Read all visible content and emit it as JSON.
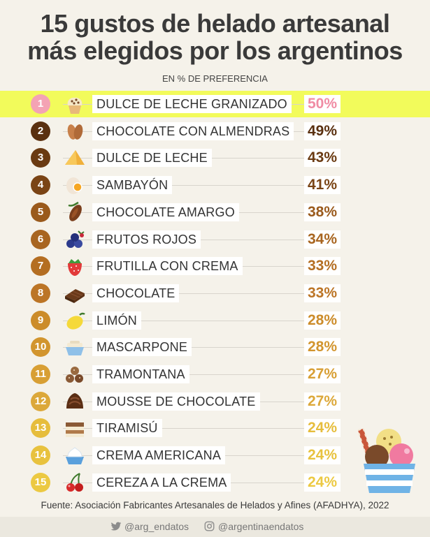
{
  "header": {
    "title_line1": "15 gustos de helado artesanal",
    "title_line2": "más elegidos por los argentinos",
    "subtitle": "EN % DE PREFERENCIA"
  },
  "chart_data": {
    "type": "bar",
    "title": "15 gustos de helado artesanal más elegidos por los argentinos",
    "subtitle": "EN % DE PREFERENCIA",
    "unit": "%",
    "highlighted_rank": 1,
    "categories": [
      "DULCE DE LECHE GRANIZADO",
      "CHOCOLATE CON ALMENDRAS",
      "DULCE DE LECHE",
      "SAMBAYÓN",
      "CHOCOLATE AMARGO",
      "FRUTOS ROJOS",
      "FRUTILLA CON CREMA",
      "CHOCOLATE",
      "LIMÓN",
      "MASCARPONE",
      "TRAMONTANA",
      "MOUSSE DE CHOCOLATE",
      "TIRAMISÚ",
      "CREMA AMERICANA",
      "CEREZA A LA CREMA"
    ],
    "values": [
      50,
      49,
      43,
      41,
      38,
      34,
      33,
      33,
      28,
      28,
      27,
      27,
      24,
      24,
      24
    ],
    "items": [
      {
        "rank": "1",
        "name": "DULCE DE LECHE GRANIZADO",
        "pct": "50%",
        "icon": "cupcake-icon",
        "badge_color": "#f4a3b4",
        "pct_color": "#f08ca4"
      },
      {
        "rank": "2",
        "name": "CHOCOLATE CON ALMENDRAS",
        "pct": "49%",
        "icon": "almond-icon",
        "badge_color": "#5a3010",
        "pct_color": "#5a3010"
      },
      {
        "rank": "3",
        "name": "DULCE DE LECHE",
        "pct": "43%",
        "icon": "caramel-icon",
        "badge_color": "#6a3a12",
        "pct_color": "#6a3a12"
      },
      {
        "rank": "4",
        "name": "SAMBAYÓN",
        "pct": "41%",
        "icon": "egg-icon",
        "badge_color": "#7a4415",
        "pct_color": "#7a4415"
      },
      {
        "rank": "5",
        "name": "CHOCOLATE AMARGO",
        "pct": "38%",
        "icon": "cacao-pod-icon",
        "badge_color": "#9a5a1c",
        "pct_color": "#9a5a1c"
      },
      {
        "rank": "6",
        "name": "FRUTOS ROJOS",
        "pct": "34%",
        "icon": "berries-icon",
        "badge_color": "#a86520",
        "pct_color": "#a86520"
      },
      {
        "rank": "7",
        "name": "FRUTILLA CON CREMA",
        "pct": "33%",
        "icon": "strawberry-icon",
        "badge_color": "#b46e22",
        "pct_color": "#b46e22"
      },
      {
        "rank": "8",
        "name": "CHOCOLATE",
        "pct": "33%",
        "icon": "chocolate-bar-icon",
        "badge_color": "#bc7526",
        "pct_color": "#bc7526"
      },
      {
        "rank": "9",
        "name": "LIMÓN",
        "pct": "28%",
        "icon": "lemon-icon",
        "badge_color": "#cc8c2a",
        "pct_color": "#cc8c2a"
      },
      {
        "rank": "10",
        "name": "MASCARPONE",
        "pct": "28%",
        "icon": "cheese-bowl-icon",
        "badge_color": "#d2952e",
        "pct_color": "#d2952e"
      },
      {
        "rank": "11",
        "name": "TRAMONTANA",
        "pct": "27%",
        "icon": "cookie-balls-icon",
        "badge_color": "#d89f34",
        "pct_color": "#d89f34"
      },
      {
        "rank": "12",
        "name": "MOUSSE DE CHOCOLATE",
        "pct": "27%",
        "icon": "chocolate-truffle-icon",
        "badge_color": "#dca83a",
        "pct_color": "#dca83a"
      },
      {
        "rank": "13",
        "name": "TIRAMISÚ",
        "pct": "24%",
        "icon": "tiramisu-icon",
        "badge_color": "#e6bd3c",
        "pct_color": "#e6bd3c"
      },
      {
        "rank": "14",
        "name": "CREMA AMERICANA",
        "pct": "24%",
        "icon": "cream-bowl-icon",
        "badge_color": "#e8c23e",
        "pct_color": "#e8c23e"
      },
      {
        "rank": "15",
        "name": "CEREZA A LA CREMA",
        "pct": "24%",
        "icon": "cherries-icon",
        "badge_color": "#ecc942",
        "pct_color": "#ecc942"
      }
    ]
  },
  "colors": {
    "highlight": "#f2fb5b",
    "background": "#f5f2ea"
  },
  "source": "Fuente: Asociación Fabricantes Artesanales de Helados y Afines (AFADHYA), 2022",
  "footer": {
    "twitter": "@arg_endatos",
    "instagram": "@argentinaendatos",
    "twitter_icon": "twitter-icon",
    "instagram_icon": "instagram-icon"
  }
}
